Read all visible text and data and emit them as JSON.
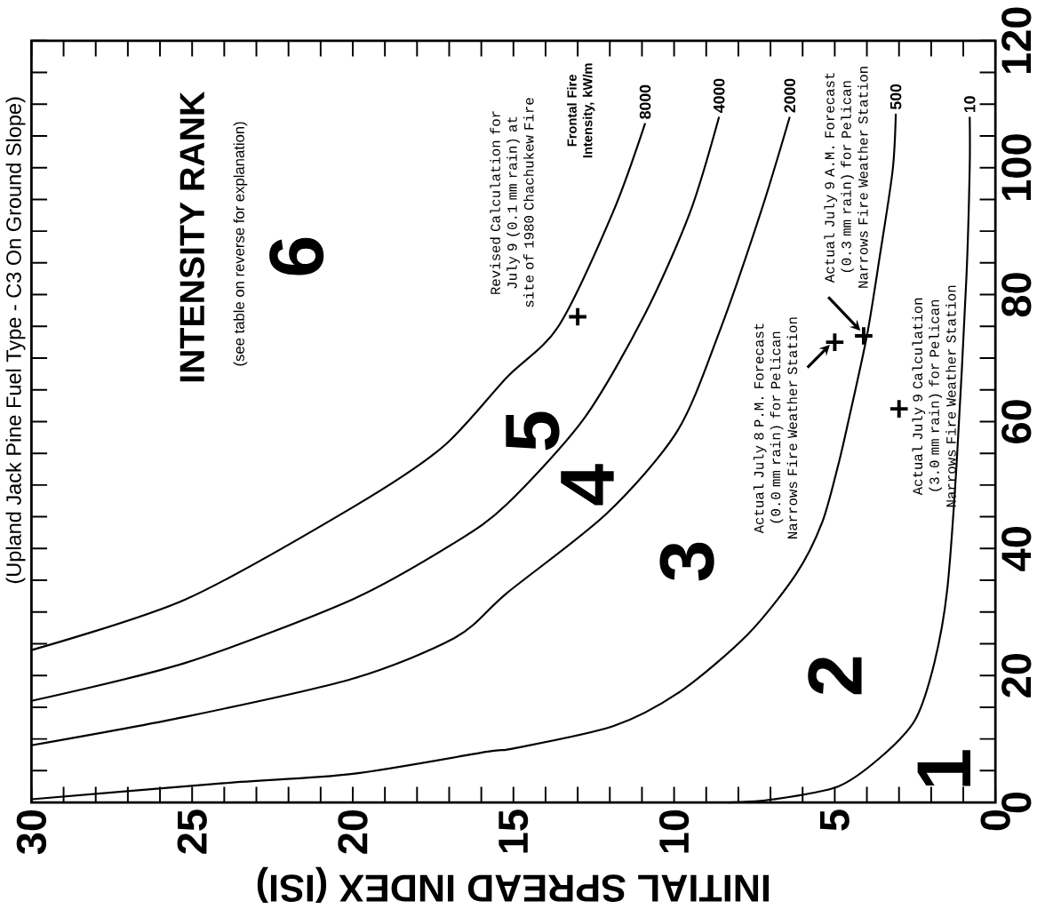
{
  "chart_data": {
    "type": "line",
    "subtitle": "(Upland Jack Pine Fuel Type - C3 On Ground Slope)",
    "xlabel": "INITIAL SPREAD INDEX (ISI)",
    "legend_title": "Frontal Fire Intensity, kW/m",
    "xlim": [
      30,
      0
    ],
    "ylim": [
      0,
      120
    ],
    "xticks": [
      0,
      5,
      10,
      15,
      20,
      25,
      30
    ],
    "yticks": [
      0,
      20,
      40,
      60,
      80,
      100,
      120
    ],
    "series": [
      {
        "name": "8000",
        "color": "#000000",
        "x": [
          30,
          25.2,
          20,
          17.2,
          15.2,
          13.6,
          11.9,
          10.9
        ],
        "values": [
          24,
          32,
          46.5,
          56,
          67,
          75,
          93,
          107
        ]
      },
      {
        "name": "4000",
        "color": "#000000",
        "x": [
          30,
          25.2,
          20,
          16.8,
          15.2,
          12.8,
          10.9,
          9.5,
          8.6
        ],
        "values": [
          16,
          22,
          32,
          41,
          47,
          60.5,
          77,
          93,
          108
        ]
      },
      {
        "name": "2000",
        "color": "#000000",
        "x": [
          30,
          25.2,
          20,
          16.8,
          15.2,
          12.1,
          9.9,
          8.6,
          7.3,
          6.4
        ],
        "values": [
          9,
          13.5,
          19.5,
          26,
          33,
          45.5,
          58.5,
          74,
          93,
          108
        ]
      },
      {
        "name": "500",
        "color": "#000000",
        "x": [
          30,
          24.1,
          20,
          15.8,
          15,
          11.9,
          9.8,
          7.7,
          6.2,
          5.4,
          4.9,
          4.6,
          4,
          3.6,
          3.2,
          3.1
        ],
        "values": [
          0.5,
          3,
          4.5,
          8,
          8.5,
          12,
          17.5,
          26.5,
          36,
          44,
          53,
          59.5,
          73.5,
          86,
          99.5,
          108.5
        ]
      },
      {
        "name": "10",
        "color": "#000000",
        "x": [
          8.3,
          6.9,
          4.9,
          3.6,
          2.5,
          1.9,
          1.5,
          1.2,
          0.9,
          0.8,
          0.8
        ],
        "values": [
          0,
          0.5,
          2.5,
          7,
          13,
          22,
          33.5,
          54,
          83,
          100,
          108
        ]
      },
      {
        "type": "scatter",
        "marker": "cross",
        "color": "#000000",
        "x": [
          13,
          5,
          4.1,
          3
        ],
        "values": [
          76.5,
          72.5,
          73.5,
          62
        ]
      }
    ],
    "annotations": [
      "Revised Calculation for July 9 (0.1 mm rain) at site of 1980 Chachukew Fire",
      {
        "text": "Actual July 8 P.M. Forecast (0.0 mm rain) for Pelican Narrows Fire Weather Station",
        "x": 5,
        "y": 72.5
      },
      "Actual July 9 A.M. Forecast (0.3 mm rain) for Pelican Narrows Fire Weather Station",
      {
        "text": "Actual July 9 Calculation (3.0 mm rain) for Pelican Narrows Fire Weather Station",
        "x": 3,
        "y": 62
      },
      "INTENSITY RANK",
      "(see table on reverse for explanation)",
      "1",
      "2",
      "3",
      "4",
      "5",
      "6"
    ]
  }
}
